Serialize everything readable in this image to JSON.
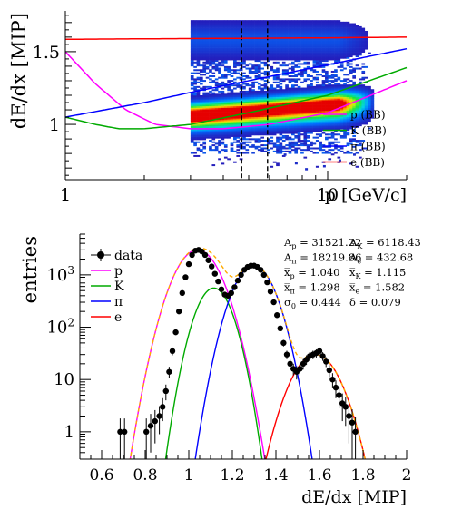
{
  "chart_data": [
    {
      "type": "heatmap",
      "xlabel": "p [GeV/c]",
      "ylabel": "dE/dx [MIP]",
      "xscale": "log",
      "xlim": [
        1,
        20
      ],
      "ylim": [
        0.62,
        1.78
      ],
      "x_tick_labels": [
        {
          "value": 1,
          "label": "1"
        },
        {
          "value": 10,
          "label": "10"
        }
      ],
      "y_tick_labels": [
        {
          "value": 1,
          "label": "1"
        },
        {
          "value": 1.5,
          "label": "1.5"
        }
      ],
      "vertical_dashed_lines_x": [
        4.7,
        5.9
      ],
      "density": {
        "p_range": [
          3.0,
          15.0
        ],
        "bands": [
          {
            "center_at_p1": 1.0,
            "slope": 0.12,
            "sigma": 0.045,
            "weight": 1.0
          },
          {
            "center_at_p1": 0.96,
            "slope": 0.1,
            "sigma": 0.05,
            "weight": 0.45
          },
          {
            "center_at_p1": 1.58,
            "slope": 0.0,
            "sigma": 0.07,
            "weight": 0.12
          }
        ],
        "background_y_range": [
          0.8,
          1.55
        ]
      },
      "series": [
        {
          "name": "p (BB)",
          "color": "#ff00ff",
          "points": [
            [
              1,
              1.5
            ],
            [
              1.3,
              1.28
            ],
            [
              1.7,
              1.1
            ],
            [
              2.2,
              1.0
            ],
            [
              3,
              0.97
            ],
            [
              4,
              0.97
            ],
            [
              6,
              1.0
            ],
            [
              10,
              1.08
            ],
            [
              20,
              1.3
            ]
          ]
        },
        {
          "name": "K (BB)",
          "color": "#00aa00",
          "points": [
            [
              1,
              1.05
            ],
            [
              1.3,
              1.0
            ],
            [
              1.6,
              0.97
            ],
            [
              2,
              0.97
            ],
            [
              3,
              1.0
            ],
            [
              5,
              1.08
            ],
            [
              10,
              1.2
            ],
            [
              20,
              1.39
            ]
          ]
        },
        {
          "name": "π (BB)",
          "color": "#0000ff",
          "points": [
            [
              1,
              1.05
            ],
            [
              2,
              1.15
            ],
            [
              3,
              1.22
            ],
            [
              5,
              1.3
            ],
            [
              10,
              1.41
            ],
            [
              20,
              1.52
            ]
          ]
        },
        {
          "name": "e (BB)",
          "color": "#ff0000",
          "points": [
            [
              1,
              1.585
            ],
            [
              3,
              1.59
            ],
            [
              10,
              1.595
            ],
            [
              20,
              1.6
            ]
          ]
        }
      ]
    },
    {
      "type": "scatter",
      "xlabel": "dE/dx [MIP]",
      "ylabel": "entries",
      "yscale": "log",
      "xlim": [
        0.5,
        2.0
      ],
      "ylim": [
        0.3,
        6000
      ],
      "x_tick_labels": [
        {
          "value": 0.6,
          "label": "0.6"
        },
        {
          "value": 0.8,
          "label": "0.8"
        },
        {
          "value": 1.0,
          "label": "1"
        },
        {
          "value": 1.2,
          "label": "1.2"
        },
        {
          "value": 1.4,
          "label": "1.4"
        },
        {
          "value": 1.6,
          "label": "1.6"
        },
        {
          "value": 1.8,
          "label": "1.8"
        },
        {
          "value": 2.0,
          "label": "2"
        }
      ],
      "y_tick_labels": [
        {
          "value": 1,
          "label": "1"
        },
        {
          "value": 10,
          "label": "10"
        },
        {
          "value": 100,
          "label": "10",
          "sup": "2"
        },
        {
          "value": 1000,
          "label": "10",
          "sup": "3"
        }
      ],
      "legend": [
        {
          "label": "data",
          "color": "#000000",
          "marker": "dot"
        },
        {
          "label": "p",
          "color": "#ff00ff"
        },
        {
          "label": "K",
          "color": "#00aa00"
        },
        {
          "label": "π",
          "color": "#0000ff"
        },
        {
          "label": "e",
          "color": "#ff0000"
        }
      ],
      "fit_results": [
        [
          "A",
          "p",
          " = 31521.22"
        ],
        [
          "A",
          "K",
          " = 6118.43"
        ],
        [
          "A",
          "π",
          " = 18219.86"
        ],
        [
          "A",
          "e",
          " = 432.68"
        ],
        [
          "x̅",
          "p",
          " = 1.040"
        ],
        [
          "x̅",
          "K",
          " = 1.115"
        ],
        [
          "x̅",
          "π",
          " = 1.298"
        ],
        [
          "x̅",
          "e",
          " = 1.582"
        ],
        [
          "σ",
          "0",
          " = 0.444"
        ],
        [
          "δ",
          "",
          " = 0.079"
        ]
      ],
      "components": [
        {
          "name": "p",
          "color": "#ff00ff",
          "amplitude": 3000,
          "mean": 1.04,
          "sigma": 0.072
        },
        {
          "name": "K",
          "color": "#00aa00",
          "amplitude": 560,
          "mean": 1.115,
          "sigma": 0.057
        },
        {
          "name": "π",
          "color": "#0000ff",
          "amplitude": 1500,
          "mean": 1.298,
          "sigma": 0.065
        },
        {
          "name": "e",
          "color": "#ff0000",
          "amplitude": 30,
          "mean": 1.582,
          "sigma": 0.075
        }
      ],
      "sum_curve_color": "#ffaa00",
      "data": [
        {
          "x": 0.685,
          "y": 1,
          "err": 0.8
        },
        {
          "x": 0.705,
          "y": 1,
          "err": 0.8
        },
        {
          "x": 0.805,
          "y": 1,
          "err": 0.8
        },
        {
          "x": 0.825,
          "y": 1.3,
          "err": 0.9
        },
        {
          "x": 0.845,
          "y": 1.6,
          "err": 1
        },
        {
          "x": 0.865,
          "y": 2,
          "err": 1.1
        },
        {
          "x": 0.88,
          "y": 3,
          "err": 1.4
        },
        {
          "x": 0.895,
          "y": 6,
          "err": 2
        },
        {
          "x": 0.91,
          "y": 14,
          "err": 3.5
        },
        {
          "x": 0.925,
          "y": 35,
          "err": 6
        },
        {
          "x": 0.94,
          "y": 80,
          "err": 9
        },
        {
          "x": 0.955,
          "y": 200,
          "err": 14
        },
        {
          "x": 0.97,
          "y": 450,
          "err": 21
        },
        {
          "x": 0.985,
          "y": 900,
          "err": 30
        },
        {
          "x": 1.0,
          "y": 1600,
          "err": 40
        },
        {
          "x": 1.015,
          "y": 2400,
          "err": 50
        },
        {
          "x": 1.03,
          "y": 2900,
          "err": 55
        },
        {
          "x": 1.045,
          "y": 3000,
          "err": 55
        },
        {
          "x": 1.06,
          "y": 2800,
          "err": 53
        },
        {
          "x": 1.075,
          "y": 2400,
          "err": 50
        },
        {
          "x": 1.09,
          "y": 1900,
          "err": 44
        },
        {
          "x": 1.105,
          "y": 1450,
          "err": 38
        },
        {
          "x": 1.12,
          "y": 1050,
          "err": 32
        },
        {
          "x": 1.135,
          "y": 750,
          "err": 27
        },
        {
          "x": 1.15,
          "y": 530,
          "err": 23
        },
        {
          "x": 1.165,
          "y": 420,
          "err": 20
        },
        {
          "x": 1.18,
          "y": 400,
          "err": 20
        },
        {
          "x": 1.195,
          "y": 450,
          "err": 21
        },
        {
          "x": 1.21,
          "y": 580,
          "err": 24
        },
        {
          "x": 1.225,
          "y": 780,
          "err": 28
        },
        {
          "x": 1.24,
          "y": 1000,
          "err": 32
        },
        {
          "x": 1.255,
          "y": 1250,
          "err": 35
        },
        {
          "x": 1.27,
          "y": 1420,
          "err": 38
        },
        {
          "x": 1.285,
          "y": 1500,
          "err": 39
        },
        {
          "x": 1.3,
          "y": 1500,
          "err": 39
        },
        {
          "x": 1.315,
          "y": 1420,
          "err": 38
        },
        {
          "x": 1.33,
          "y": 1250,
          "err": 35
        },
        {
          "x": 1.345,
          "y": 1000,
          "err": 32
        },
        {
          "x": 1.36,
          "y": 720,
          "err": 27
        },
        {
          "x": 1.375,
          "y": 480,
          "err": 22
        },
        {
          "x": 1.39,
          "y": 300,
          "err": 17
        },
        {
          "x": 1.405,
          "y": 170,
          "err": 13
        },
        {
          "x": 1.42,
          "y": 95,
          "err": 10
        },
        {
          "x": 1.435,
          "y": 50,
          "err": 7
        },
        {
          "x": 1.45,
          "y": 30,
          "err": 5.5
        },
        {
          "x": 1.465,
          "y": 20,
          "err": 4.5
        },
        {
          "x": 1.48,
          "y": 16,
          "err": 4
        },
        {
          "x": 1.495,
          "y": 14,
          "err": 4
        },
        {
          "x": 1.51,
          "y": 16,
          "err": 4
        },
        {
          "x": 1.525,
          "y": 20,
          "err": 4.5
        },
        {
          "x": 1.54,
          "y": 24,
          "err": 5
        },
        {
          "x": 1.555,
          "y": 28,
          "err": 5.3
        },
        {
          "x": 1.57,
          "y": 30,
          "err": 5.5
        },
        {
          "x": 1.585,
          "y": 32,
          "err": 5.7
        },
        {
          "x": 1.6,
          "y": 35,
          "err": 6
        },
        {
          "x": 1.615,
          "y": 28,
          "err": 5.3
        },
        {
          "x": 1.63,
          "y": 22,
          "err": 4.7
        },
        {
          "x": 1.645,
          "y": 15,
          "err": 3.9
        },
        {
          "x": 1.66,
          "y": 10,
          "err": 3.2
        },
        {
          "x": 1.675,
          "y": 7,
          "err": 2.6
        },
        {
          "x": 1.69,
          "y": 5,
          "err": 2.2
        },
        {
          "x": 1.705,
          "y": 3.5,
          "err": 1.9
        },
        {
          "x": 1.72,
          "y": 3,
          "err": 1.7
        },
        {
          "x": 1.735,
          "y": 2,
          "err": 1.4
        },
        {
          "x": 1.75,
          "y": 1.5,
          "err": 1.2
        },
        {
          "x": 1.765,
          "y": 1,
          "err": 0.9
        }
      ]
    }
  ]
}
